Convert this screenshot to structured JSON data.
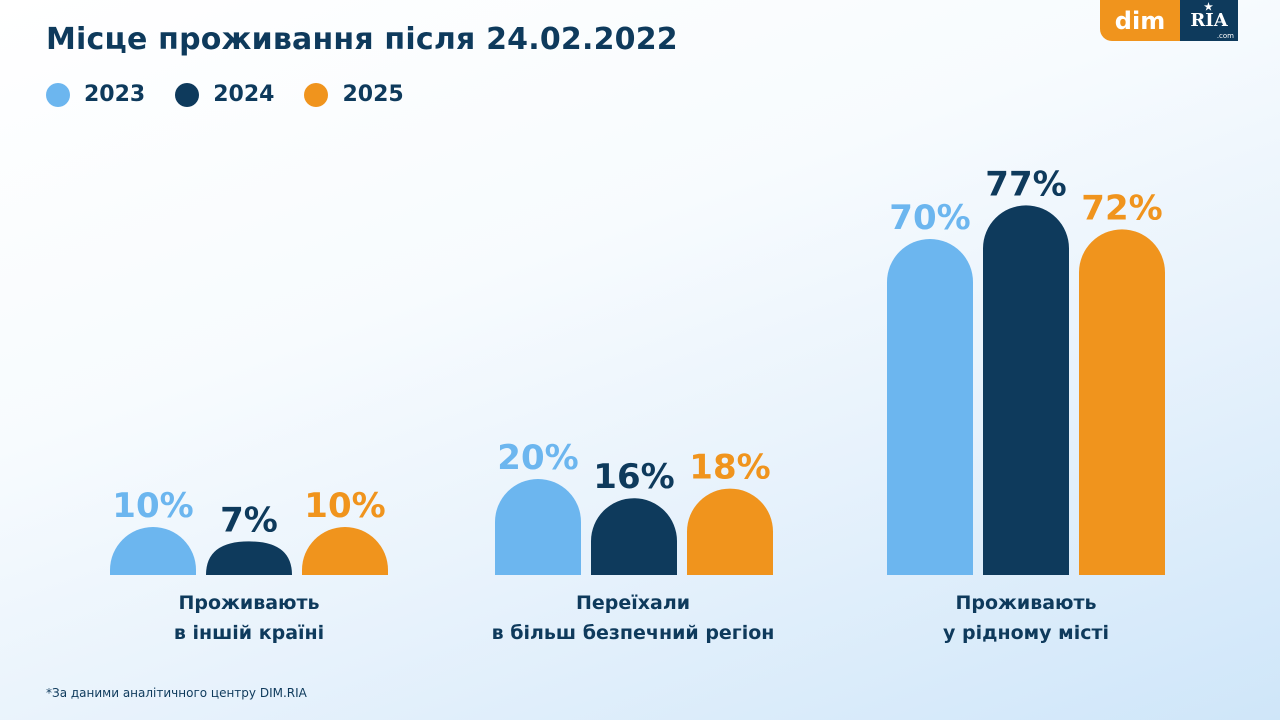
{
  "header": {
    "title": "Місце проживання після 24.02.2022"
  },
  "logo": {
    "dim_text": "dim",
    "ria_text": "RIA",
    "ria_sub": ".com"
  },
  "footnote": "*За даними аналітичного центру DIM.RIA",
  "chart_data": {
    "type": "bar",
    "title": "Місце проживання після 24.02.2022",
    "categories": [
      [
        "Проживають",
        "в іншій країні"
      ],
      [
        "Переїхали",
        "в більш безпечний регіон"
      ],
      [
        "Проживають",
        "у рідному місті"
      ]
    ],
    "series": [
      {
        "name": "2023",
        "color": "#6cb6ef",
        "values": [
          10,
          20,
          70
        ]
      },
      {
        "name": "2024",
        "color": "#0e3a5c",
        "values": [
          7,
          16,
          77
        ]
      },
      {
        "name": "2025",
        "color": "#f0941d",
        "values": [
          10,
          18,
          72
        ]
      }
    ],
    "value_suffix": "%",
    "legend": "top-left",
    "grid": false,
    "ylim": [
      0,
      80
    ]
  }
}
